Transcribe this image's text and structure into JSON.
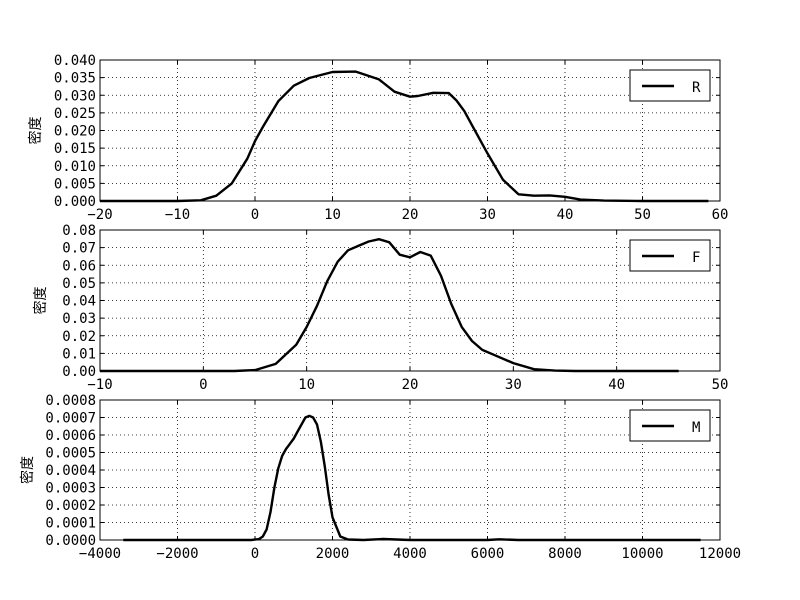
{
  "chart_data": [
    {
      "type": "line",
      "ylabel": "密度",
      "xlim": [
        -20,
        60
      ],
      "ylim": [
        0,
        0.04
      ],
      "xticks": [
        -20,
        -10,
        0,
        10,
        20,
        30,
        40,
        50,
        60
      ],
      "xtick_labels": [
        "−20",
        "−10",
        "0",
        "10",
        "20",
        "30",
        "40",
        "50",
        "60"
      ],
      "yticks": [
        0,
        0.005,
        0.01,
        0.015,
        0.02,
        0.025,
        0.03,
        0.035,
        0.04
      ],
      "ytick_labels": [
        "0.000",
        "0.005",
        "0.010",
        "0.015",
        "0.020",
        "0.025",
        "0.030",
        "0.035",
        "0.040"
      ],
      "grid": true,
      "legend_position": "top-right",
      "series": [
        {
          "name": "R",
          "x": [
            -20,
            -10,
            -7,
            -5,
            -3,
            -1,
            0,
            1,
            3,
            5,
            7,
            10,
            13,
            16,
            18,
            20,
            21,
            23,
            25,
            26,
            27,
            28,
            30,
            32,
            34,
            36,
            38,
            40,
            42,
            45,
            50,
            58.5
          ],
          "y": [
            0,
            0,
            0.0002,
            0.0015,
            0.005,
            0.012,
            0.017,
            0.021,
            0.0283,
            0.0327,
            0.0349,
            0.0366,
            0.0367,
            0.0345,
            0.031,
            0.0296,
            0.0298,
            0.0307,
            0.0306,
            0.0285,
            0.0255,
            0.0215,
            0.0135,
            0.006,
            0.0019,
            0.0015,
            0.0016,
            0.0012,
            0.0004,
            0.0001,
            0,
            0
          ]
        }
      ]
    },
    {
      "type": "line",
      "ylabel": "密度",
      "xlim": [
        -10,
        50
      ],
      "ylim": [
        0,
        0.08
      ],
      "xticks": [
        -10,
        0,
        10,
        20,
        30,
        40,
        50
      ],
      "xtick_labels": [
        "−10",
        "0",
        "10",
        "20",
        "30",
        "40",
        "50"
      ],
      "yticks": [
        0,
        0.01,
        0.02,
        0.03,
        0.04,
        0.05,
        0.06,
        0.07,
        0.08
      ],
      "ytick_labels": [
        "0.00",
        "0.01",
        "0.02",
        "0.03",
        "0.04",
        "0.05",
        "0.06",
        "0.07",
        "0.08"
      ],
      "grid": true,
      "legend_position": "top-right",
      "series": [
        {
          "name": "F",
          "x": [
            -10,
            3,
            5,
            7,
            9,
            10,
            11,
            12,
            13,
            14,
            15,
            16,
            17,
            18,
            19,
            20,
            21,
            22,
            23,
            24,
            25,
            26,
            27,
            28,
            30,
            32,
            34,
            36,
            46
          ],
          "y": [
            0,
            0,
            0.0005,
            0.004,
            0.015,
            0.025,
            0.037,
            0.051,
            0.062,
            0.0685,
            0.071,
            0.0735,
            0.0748,
            0.073,
            0.066,
            0.0645,
            0.0675,
            0.0655,
            0.054,
            0.038,
            0.025,
            0.017,
            0.012,
            0.0095,
            0.0045,
            0.001,
            0.0002,
            0,
            0
          ]
        }
      ]
    },
    {
      "type": "line",
      "ylabel": "密度",
      "xlim": [
        -4000,
        12000
      ],
      "ylim": [
        0,
        0.0008
      ],
      "xticks": [
        -4000,
        -2000,
        0,
        2000,
        4000,
        6000,
        8000,
        10000,
        12000
      ],
      "xtick_labels": [
        "−4000",
        "−2000",
        "0",
        "2000",
        "4000",
        "6000",
        "8000",
        "10000",
        "12000"
      ],
      "yticks": [
        0,
        0.0001,
        0.0002,
        0.0003,
        0.0004,
        0.0005,
        0.0006,
        0.0007,
        0.0008
      ],
      "ytick_labels": [
        "0.0000",
        "0.0001",
        "0.0002",
        "0.0003",
        "0.0004",
        "0.0005",
        "0.0006",
        "0.0007",
        "0.0008"
      ],
      "grid": true,
      "legend_position": "top-right",
      "series": [
        {
          "name": "M",
          "x": [
            -3400,
            -500,
            -100,
            100,
            200,
            300,
            400,
            500,
            600,
            700,
            800,
            900,
            1000,
            1100,
            1200,
            1300,
            1400,
            1500,
            1600,
            1700,
            1800,
            1900,
            2000,
            2200,
            2400,
            2800,
            3300,
            4000,
            6000,
            6300,
            6800,
            8000,
            11500
          ],
          "y": [
            0,
            0,
            0,
            5e-06,
            2e-05,
            6e-05,
            0.00016,
            0.0003,
            0.00041,
            0.00048,
            0.00052,
            0.00055,
            0.00058,
            0.00062,
            0.00066,
            0.0007,
            0.00071,
            0.0007,
            0.00066,
            0.00056,
            0.00042,
            0.00026,
            0.00013,
            2e-05,
            3e-06,
            0,
            6e-06,
            0,
            0,
            4e-06,
            0,
            0,
            0
          ]
        }
      ]
    }
  ]
}
